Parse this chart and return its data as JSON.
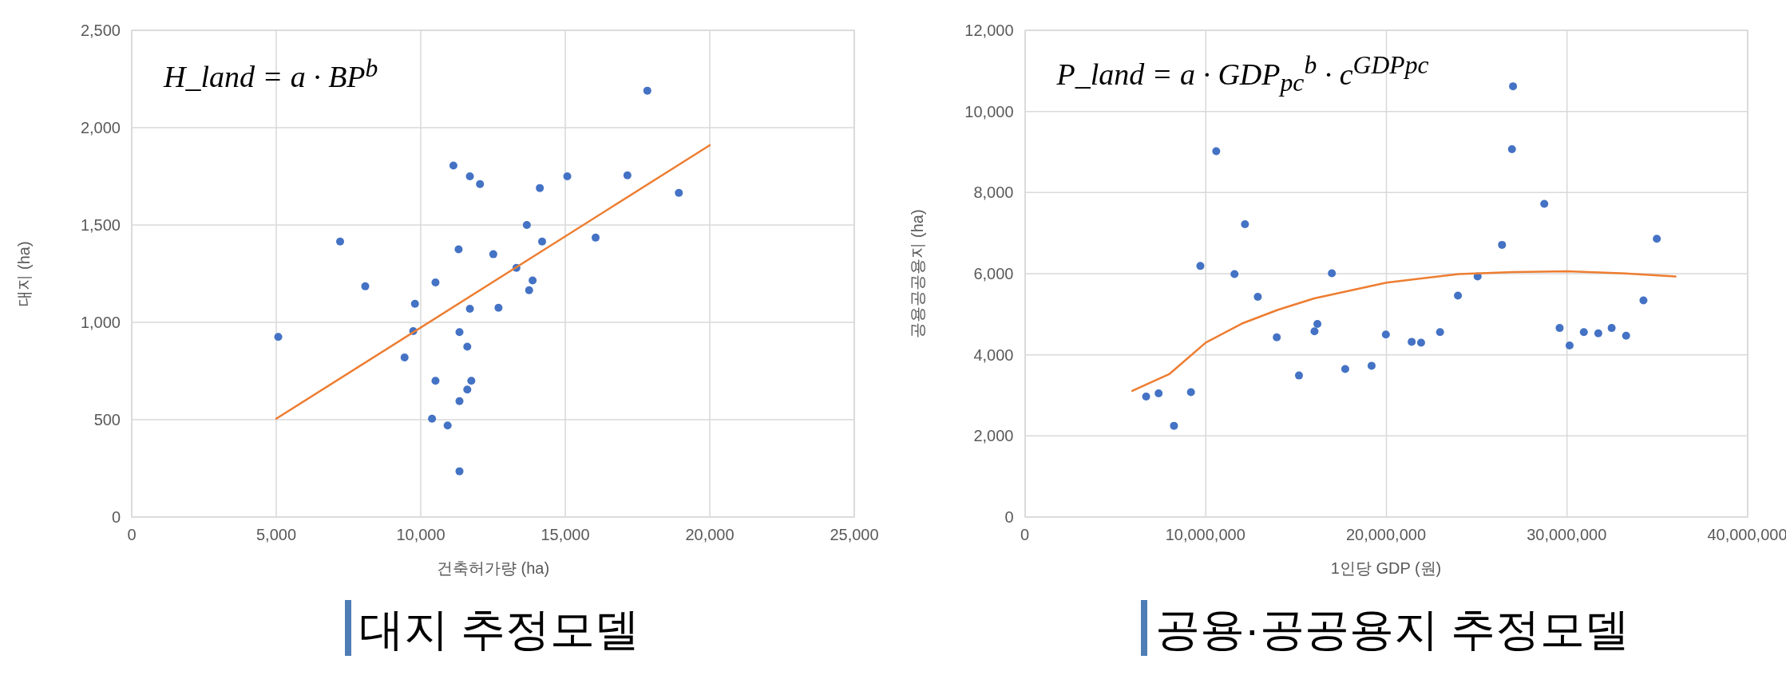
{
  "chart_data": [
    {
      "type": "scatter",
      "title": "대지 추정모델",
      "xlabel": "건축허가량 (ha)",
      "ylabel": "대지 (ha)",
      "annotations": [
        "H_land = a · BP$^{b}$"
      ],
      "grid": true,
      "xlim": [
        0,
        25000
      ],
      "ylim": [
        0,
        2500
      ],
      "xticks": [
        {
          "value": 0,
          "label": "0"
        },
        {
          "value": 5000,
          "label": "5,000"
        },
        {
          "value": 10000,
          "label": "10,000"
        },
        {
          "value": 15000,
          "label": "15,000"
        },
        {
          "value": 20000,
          "label": "20,000"
        },
        {
          "value": 25000,
          "label": "25,000"
        }
      ],
      "yticks": [
        {
          "value": 0,
          "label": "0"
        },
        {
          "value": 500,
          "label": "500"
        },
        {
          "value": 1000,
          "label": "1,000"
        },
        {
          "value": 1500,
          "label": "1,500"
        },
        {
          "value": 2000,
          "label": "2,000"
        },
        {
          "value": 2500,
          "label": "2,500"
        }
      ],
      "series": [
        {
          "marker": "circle",
          "color": "#4472c4",
          "x": [
            17840,
            11130,
            11700,
            12050,
            15070,
            17150,
            14120,
            18930,
            13670,
            14200,
            16050,
            7210,
            11310,
            12510,
            13310,
            13870,
            13750,
            8080,
            10510,
            9800,
            11700,
            12690,
            5070,
            9740,
            11340,
            11610,
            9440,
            10510,
            11750,
            11610,
            11340,
            10390,
            10930,
            11340
          ],
          "values": [
            2190,
            1805,
            1750,
            1710,
            1750,
            1755,
            1690,
            1665,
            1500,
            1415,
            1435,
            1415,
            1375,
            1350,
            1280,
            1215,
            1165,
            1185,
            1205,
            1095,
            1070,
            1075,
            925,
            955,
            950,
            875,
            820,
            700,
            700,
            655,
            595,
            505,
            470,
            235
          ]
        },
        {
          "type": "line",
          "marker": "none",
          "color": "#ed7d31",
          "x": [
            5000,
            20000
          ],
          "values": [
            505,
            1910
          ]
        }
      ]
    },
    {
      "type": "scatter",
      "title": "공용·공공용지 추정모델",
      "xlabel": "1인당 GDP (원)",
      "ylabel": "공용공공용지 (ha)",
      "annotations": [
        "P_land = a · GDP$_{pc}$$^{b}$ · c$^{GDPpc}$"
      ],
      "grid": true,
      "xlim": [
        0,
        40000000
      ],
      "ylim": [
        0,
        12000
      ],
      "xticks": [
        {
          "value": 0,
          "label": "0"
        },
        {
          "value": 10000000,
          "label": "10,000,000"
        },
        {
          "value": 20000000,
          "label": "20,000,000"
        },
        {
          "value": 30000000,
          "label": "30,000,000"
        },
        {
          "value": 40000000,
          "label": "40,000,000"
        }
      ],
      "yticks": [
        {
          "value": 0,
          "label": "0"
        },
        {
          "value": 2000,
          "label": "2,000"
        },
        {
          "value": 4000,
          "label": "4,000"
        },
        {
          "value": 6000,
          "label": "6,000"
        },
        {
          "value": 8000,
          "label": "8,000"
        },
        {
          "value": 10000,
          "label": "10,000"
        },
        {
          "value": 12000,
          "label": "12,000"
        }
      ],
      "series": [
        {
          "marker": "circle",
          "color": "#4472c4",
          "x": [
            6700000,
            7390000,
            8240000,
            9180000,
            9700000,
            10580000,
            11590000,
            12170000,
            12880000,
            13930000,
            15160000,
            16020000,
            16180000,
            16980000,
            17720000,
            19180000,
            19970000,
            21400000,
            21920000,
            22970000,
            23960000,
            25050000,
            26400000,
            27010000,
            26950000,
            28740000,
            29590000,
            30140000,
            30930000,
            31730000,
            32470000,
            33270000,
            34230000,
            34970000
          ],
          "values": [
            2970,
            3050,
            2250,
            3080,
            6190,
            9020,
            5990,
            7220,
            5430,
            4430,
            3490,
            4580,
            4760,
            6010,
            3650,
            3730,
            4500,
            4320,
            4300,
            4560,
            5460,
            5930,
            6710,
            10620,
            9070,
            7720,
            4660,
            4230,
            4560,
            4530,
            4660,
            4470,
            5340,
            6860
          ]
        },
        {
          "type": "line",
          "marker": "none",
          "color": "#ed7d31",
          "x": [
            5930000,
            8000000,
            10000000,
            12000000,
            14000000,
            16000000,
            20000000,
            24000000,
            27000000,
            30000000,
            33000000,
            36000000
          ],
          "values": [
            3110,
            3530,
            4300,
            4770,
            5110,
            5390,
            5780,
            5990,
            6040,
            6060,
            6010,
            5930
          ]
        }
      ]
    }
  ]
}
